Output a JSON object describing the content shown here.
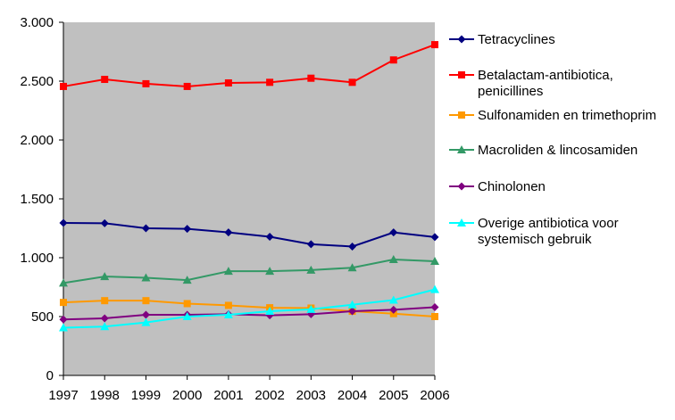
{
  "chart_data": {
    "type": "line",
    "title": "",
    "xlabel": "",
    "ylabel": "",
    "x": [
      "1997",
      "1998",
      "1999",
      "2000",
      "2001",
      "2002",
      "2003",
      "2004",
      "2005",
      "2006"
    ],
    "ylim": [
      0,
      3000
    ],
    "yticks": [
      0,
      500,
      1000,
      1500,
      2000,
      2500,
      3000
    ],
    "ytick_labels": [
      "0",
      "500",
      "1.000",
      "1.500",
      "2.000",
      "2.500",
      "3.000"
    ],
    "grid": false,
    "plot_background": "#c0c0c0",
    "legend_position": "right",
    "series": [
      {
        "name": "Tetracyclines",
        "color": "#000080",
        "marker": "diamond",
        "values": [
          1295,
          1293,
          1250,
          1245,
          1215,
          1178,
          1115,
          1095,
          1215,
          1175
        ]
      },
      {
        "name": "Betalactam-antibiotica, penicillines",
        "color": "#ff0000",
        "marker": "square",
        "values": [
          2455,
          2515,
          2478,
          2455,
          2485,
          2490,
          2525,
          2490,
          2680,
          2810
        ]
      },
      {
        "name": "Sulfonamiden en trimethoprim",
        "color": "#ff9900",
        "marker": "square",
        "values": [
          620,
          635,
          635,
          610,
          595,
          575,
          572,
          545,
          525,
          500
        ]
      },
      {
        "name": "Macroliden & lincosamiden",
        "color": "#339966",
        "marker": "triangle",
        "values": [
          785,
          840,
          830,
          810,
          885,
          885,
          895,
          915,
          985,
          970
        ]
      },
      {
        "name": "Chinolonen",
        "color": "#800080",
        "marker": "diamond",
        "values": [
          475,
          485,
          515,
          515,
          520,
          510,
          520,
          545,
          558,
          580
        ]
      },
      {
        "name": "Overige antibiotica voor systemisch gebruik",
        "color": "#00ffff",
        "marker": "triangle",
        "values": [
          405,
          415,
          450,
          500,
          515,
          545,
          562,
          600,
          640,
          730
        ]
      }
    ]
  },
  "legend": {
    "entries": [
      {
        "lines": [
          "Tetracyclines"
        ]
      },
      {
        "lines": [
          "Betalactam-antibiotica,",
          "penicillines"
        ]
      },
      {
        "lines": [
          "Sulfonamiden en trimethoprim"
        ]
      },
      {
        "lines": [
          "Macroliden & lincosamiden"
        ]
      },
      {
        "lines": [
          "Chinolonen"
        ]
      },
      {
        "lines": [
          "Overige antibiotica voor",
          "systemisch gebruik"
        ]
      }
    ]
  }
}
